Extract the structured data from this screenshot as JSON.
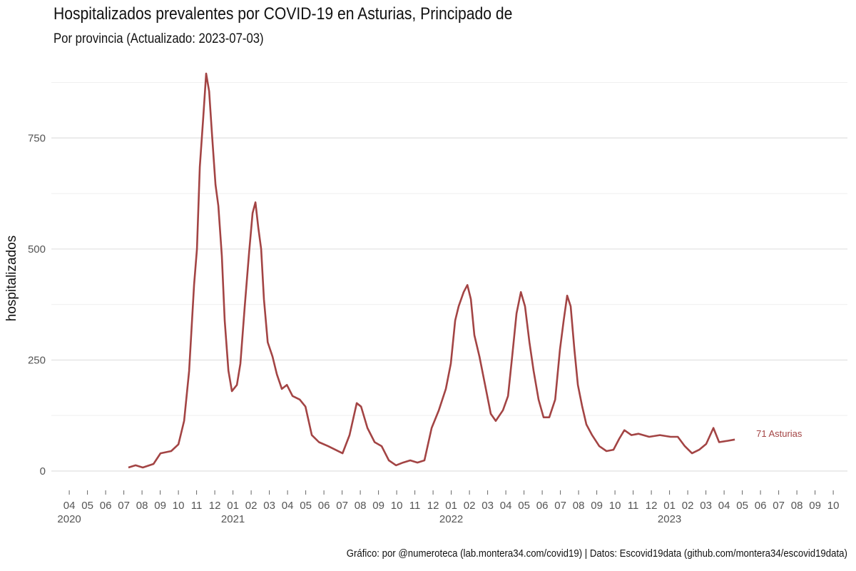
{
  "chart_data": {
    "type": "line",
    "title": "Hospitalizados prevalentes por COVID-19 en Asturias, Principado de",
    "subtitle": "Por provincia  (Actualizado: 2023-07-03)",
    "ylabel": "hospitalizados",
    "xlabel": "",
    "caption": "Gráfico: por @numeroteca (lab.montera34.com/covid19) | Datos: Escovid19data (github.com/montera34/escovid19data)",
    "x_unit": "decimal year",
    "xlim": [
      2020.168,
      2023.815
    ],
    "ylim": [
      -29,
      900
    ],
    "y_ticks": [
      0,
      250,
      500,
      750
    ],
    "y_tick_labels": [
      "0",
      "250",
      "500",
      "750"
    ],
    "grid": true,
    "series_color": "#a34444",
    "x_ticks": {
      "start": 2020.25,
      "month_labels": [
        "04",
        "05",
        "06",
        "07",
        "08",
        "09",
        "10",
        "11",
        "12",
        "01",
        "02",
        "03",
        "04",
        "05",
        "06",
        "07",
        "08",
        "09",
        "10",
        "11",
        "12",
        "01",
        "02",
        "03",
        "04",
        "05",
        "06",
        "07",
        "08",
        "09",
        "10",
        "11",
        "12",
        "01",
        "02",
        "03",
        "04",
        "05",
        "06",
        "07",
        "08",
        "09",
        "10"
      ],
      "year_labels": [
        {
          "index": 0,
          "label": "2020"
        },
        {
          "index": 9,
          "label": "2021"
        },
        {
          "index": 21,
          "label": "2022"
        },
        {
          "index": 33,
          "label": "2023"
        }
      ]
    },
    "series": [
      {
        "name": "Asturias",
        "end_label": "71 Asturias",
        "x": [
          2020.521,
          2020.554,
          2020.587,
          2020.636,
          2020.668,
          2020.717,
          2020.75,
          2020.776,
          2020.799,
          2020.822,
          2020.835,
          2020.848,
          2020.864,
          2020.877,
          2020.891,
          2020.904,
          2020.92,
          2020.933,
          2020.949,
          2020.962,
          2020.979,
          2020.995,
          2021.018,
          2021.034,
          2021.054,
          2021.074,
          2021.09,
          2021.103,
          2021.116,
          2021.129,
          2021.142,
          2021.159,
          2021.181,
          2021.201,
          2021.224,
          2021.247,
          2021.273,
          2021.306,
          2021.332,
          2021.361,
          2021.394,
          2021.436,
          2021.469,
          2021.502,
          2021.534,
          2021.567,
          2021.587,
          2021.616,
          2021.649,
          2021.681,
          2021.714,
          2021.747,
          2021.779,
          2021.812,
          2021.845,
          2021.877,
          2021.91,
          2021.943,
          2021.975,
          2021.998,
          2022.018,
          2022.034,
          2022.057,
          2022.074,
          2022.09,
          2022.106,
          2022.129,
          2022.155,
          2022.181,
          2022.204,
          2022.237,
          2022.26,
          2022.279,
          2022.299,
          2022.319,
          2022.338,
          2022.358,
          2022.377,
          2022.4,
          2022.423,
          2022.449,
          2022.476,
          2022.498,
          2022.515,
          2022.531,
          2022.547,
          2022.564,
          2022.58,
          2022.6,
          2022.619,
          2022.645,
          2022.678,
          2022.711,
          2022.743,
          2022.77,
          2022.793,
          2022.825,
          2022.858,
          2022.907,
          2022.956,
          2023.005,
          2023.038,
          2023.07,
          2023.103,
          2023.136,
          2023.168,
          2023.201,
          2023.227,
          2023.266,
          2023.299
        ],
        "values": [
          8,
          13,
          8,
          16,
          40,
          45,
          60,
          113,
          225,
          420,
          500,
          685,
          798,
          895,
          855,
          758,
          645,
          597,
          484,
          339,
          226,
          180,
          194,
          242,
          371,
          492,
          581,
          605,
          548,
          500,
          387,
          290,
          258,
          218,
          185,
          194,
          169,
          161,
          145,
          81,
          65,
          56,
          48,
          40,
          81,
          153,
          145,
          97,
          65,
          56,
          24,
          13,
          19,
          24,
          19,
          24,
          97,
          137,
          185,
          242,
          339,
          371,
          403,
          419,
          387,
          306,
          258,
          194,
          129,
          113,
          137,
          169,
          258,
          355,
          403,
          371,
          290,
          226,
          161,
          121,
          121,
          161,
          274,
          339,
          395,
          371,
          274,
          194,
          145,
          105,
          81,
          56,
          45,
          48,
          73,
          92,
          81,
          84,
          77,
          81,
          77,
          77,
          56,
          40,
          48,
          61,
          97,
          65,
          68,
          71
        ]
      }
    ]
  }
}
